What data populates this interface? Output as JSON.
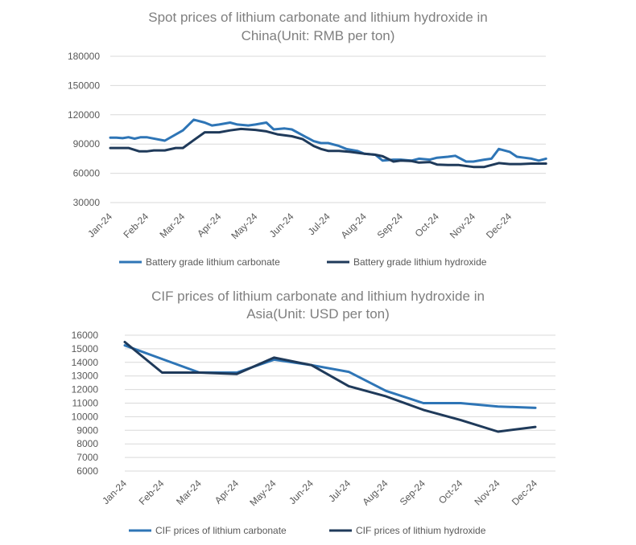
{
  "chart_data": [
    {
      "type": "line",
      "title_lines": [
        "Spot prices of lithium carbonate and lithium hydroxide in",
        "China(Unit: RMB per ton)"
      ],
      "categories": [
        "Jan-24",
        "Feb-24",
        "Mar-24",
        "Apr-24",
        "May-24",
        "Jun-24",
        "Jul-24",
        "Aug-24",
        "Sep-24",
        "Oct-24",
        "Nov-24",
        "Dec-24"
      ],
      "y_ticks": [
        "30000",
        "60000",
        "90000",
        "120000",
        "150000",
        "180000"
      ],
      "ylim": [
        30000,
        180000
      ],
      "legend_position": "bottom",
      "grid": true,
      "series": [
        {
          "name": "Battery grade lithium carbonate",
          "color": "#2e75b6",
          "x": [
            0,
            0.17,
            0.34,
            0.5,
            0.67,
            0.84,
            1.0,
            1.5,
            2.0,
            2.3,
            2.6,
            2.8,
            3.0,
            3.3,
            3.5,
            3.8,
            4.0,
            4.3,
            4.5,
            4.8,
            5.0,
            5.3,
            5.6,
            5.8,
            6.0,
            6.3,
            6.5,
            6.8,
            7.0,
            7.3,
            7.5,
            7.8,
            8.0,
            8.3,
            8.5,
            8.8,
            9.0,
            9.3,
            9.5,
            9.8,
            10.0,
            10.3,
            10.5,
            10.7,
            11.0,
            11.2,
            11.4,
            11.6,
            11.8,
            12.0
          ],
          "values": [
            96500,
            96500,
            96000,
            97000,
            95500,
            97000,
            97000,
            93500,
            104000,
            115000,
            112000,
            109000,
            110000,
            112000,
            110000,
            109000,
            110000,
            112000,
            105000,
            106000,
            105000,
            99000,
            93000,
            91000,
            91000,
            88000,
            85000,
            83000,
            80000,
            79000,
            73000,
            74000,
            74000,
            73000,
            75000,
            74000,
            76000,
            77000,
            78000,
            72000,
            72000,
            74000,
            75000,
            85000,
            82000,
            77000,
            76000,
            75000,
            73000,
            75000
          ]
        },
        {
          "name": "Battery grade lithium hydroxide",
          "color": "#1f3a5a",
          "x": [
            0,
            0.5,
            0.8,
            1.0,
            1.2,
            1.5,
            1.8,
            2.0,
            2.3,
            2.6,
            3.0,
            3.3,
            3.6,
            4.0,
            4.3,
            4.6,
            5.0,
            5.3,
            5.6,
            5.8,
            6.0,
            6.3,
            6.6,
            7.0,
            7.3,
            7.5,
            7.8,
            8.0,
            8.3,
            8.5,
            8.8,
            9.0,
            9.3,
            9.6,
            10.0,
            10.3,
            10.5,
            10.7,
            11.0,
            11.3,
            11.6,
            12.0
          ],
          "values": [
            86000,
            86000,
            82500,
            82500,
            83500,
            83500,
            86000,
            86000,
            94000,
            102000,
            102000,
            104000,
            105500,
            104500,
            103000,
            100000,
            98000,
            95000,
            88000,
            85000,
            83000,
            83000,
            82000,
            80000,
            79000,
            77500,
            72000,
            73000,
            72500,
            71000,
            71500,
            69000,
            68500,
            68500,
            66500,
            66500,
            68500,
            70500,
            69500,
            69500,
            70000,
            70000
          ]
        }
      ]
    },
    {
      "type": "line",
      "title_lines": [
        "CIF prices of lithium carbonate and lithium hydroxide in",
        "Asia(Unit: USD per ton)"
      ],
      "categories": [
        "Jan-24",
        "Feb-24",
        "Mar-24",
        "Apr-24",
        "May-24",
        "Jun-24",
        "Jul-24",
        "Aug-24",
        "Sep-24",
        "Oct-24",
        "Nov-24",
        "Dec-24"
      ],
      "y_ticks": [
        "6000",
        "7000",
        "8000",
        "9000",
        "10000",
        "11000",
        "12000",
        "13000",
        "14000",
        "15000",
        "16000"
      ],
      "ylim": [
        6000,
        16000
      ],
      "legend_position": "bottom",
      "grid": true,
      "series": [
        {
          "name": "CIF prices of lithium carbonate",
          "color": "#2e75b6",
          "x": [
            0,
            1,
            2,
            3,
            4,
            5,
            6,
            7,
            8,
            9,
            10,
            11
          ],
          "values": [
            15250,
            14250,
            13250,
            13250,
            14200,
            13800,
            13300,
            11900,
            11000,
            11000,
            10750,
            10650
          ]
        },
        {
          "name": "CIF prices of lithium hydroxide",
          "color": "#1f3a5a",
          "x": [
            0,
            1,
            2,
            3,
            4,
            5,
            6,
            7,
            8,
            9,
            10,
            11
          ],
          "values": [
            15500,
            13250,
            13250,
            13150,
            14350,
            13800,
            12250,
            11500,
            10500,
            9750,
            8900,
            9250
          ]
        }
      ]
    }
  ]
}
